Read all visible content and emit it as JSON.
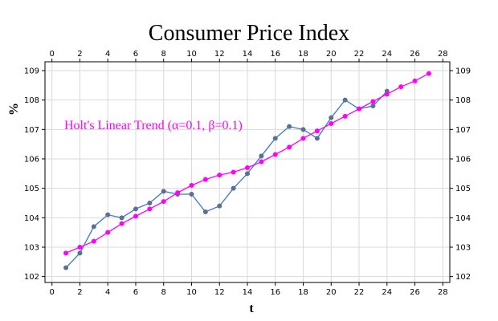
{
  "chart_data": {
    "type": "line",
    "title": "Consumer Price Index",
    "xlabel": "t",
    "ylabel": "%",
    "xlim": [
      -0.5,
      28.5
    ],
    "ylim": [
      101.8,
      109.3
    ],
    "x_ticks": [
      0,
      2,
      4,
      6,
      8,
      10,
      12,
      14,
      16,
      18,
      20,
      22,
      24,
      26,
      28
    ],
    "y_ticks": [
      102,
      103,
      104,
      105,
      106,
      107,
      108,
      109
    ],
    "grid": true,
    "annotation": "Holt's Linear Trend (α=0.1, β=0.1)",
    "series": [
      {
        "color": "#3a78c9",
        "marker_color": "#5b6f8e",
        "x": [
          1,
          2,
          3,
          4,
          5,
          6,
          7,
          8,
          9,
          10,
          11,
          12,
          13,
          14,
          15,
          16,
          17,
          18,
          19,
          20,
          21,
          22,
          23,
          24
        ],
        "y": [
          102.3,
          102.8,
          103.7,
          104.1,
          104.0,
          104.3,
          104.5,
          104.9,
          104.8,
          104.8,
          104.2,
          104.4,
          105.0,
          105.5,
          106.1,
          106.7,
          107.1,
          107.0,
          106.7,
          107.4,
          108.0,
          107.7,
          107.8,
          108.3
        ]
      },
      {
        "color": "#ff00ff",
        "marker_color": "#ff00ff",
        "x": [
          1,
          2,
          3,
          4,
          5,
          6,
          7,
          8,
          9,
          10,
          11,
          12,
          13,
          14,
          15,
          16,
          17,
          18,
          19,
          20,
          21,
          22,
          23,
          24,
          25,
          26,
          27
        ],
        "y": [
          102.8,
          103.0,
          103.2,
          103.5,
          103.8,
          104.05,
          104.3,
          104.55,
          104.85,
          105.1,
          105.3,
          105.45,
          105.55,
          105.7,
          105.9,
          106.15,
          106.4,
          106.7,
          106.95,
          107.2,
          107.45,
          107.7,
          107.95,
          108.2,
          108.45,
          108.65,
          108.9
        ]
      }
    ]
  }
}
